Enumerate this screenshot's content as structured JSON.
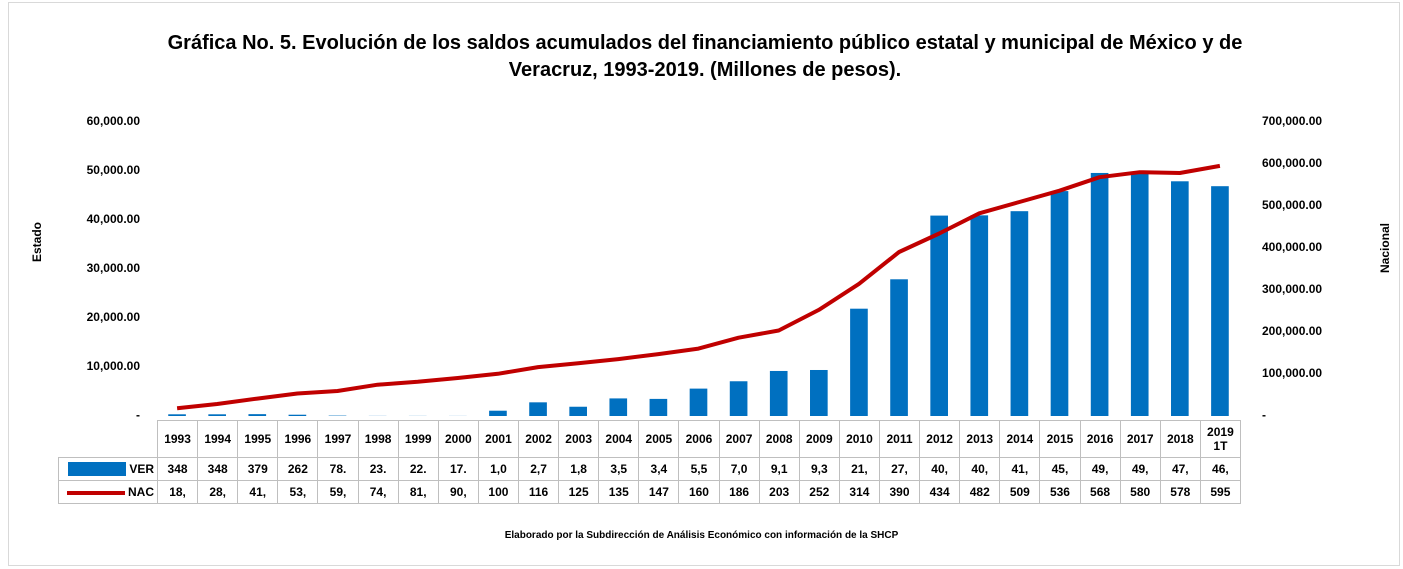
{
  "chart_data": {
    "type": "bar-line",
    "title": "Gráfica No. 5. Evolución de los saldos acumulados del financiamiento público estatal y municipal de México y de Veracruz,  1993-2019. (Millones de pesos).",
    "y_label": "Estado",
    "y2_label": "Nacional",
    "note": "Elaborado por la Subdirección de Análisis Económico con información de la SHCP",
    "categories": [
      "1993",
      "1994",
      "1995",
      "1996",
      "1997",
      "1998",
      "1999",
      "2000",
      "2001",
      "2002",
      "2003",
      "2004",
      "2005",
      "2006",
      "2007",
      "2008",
      "2009",
      "2010",
      "2011",
      "2012",
      "2013",
      "2014",
      "2015",
      "2016",
      "2017",
      "2018",
      "2019 1T"
    ],
    "series": [
      {
        "name": "VER",
        "type": "bar",
        "color": "#0070c0",
        "values": [
          348,
          348,
          379,
          262,
          78.5,
          23.5,
          22.5,
          17.5,
          1080,
          2790,
          1890,
          3590,
          3490,
          5590,
          7090,
          9190,
          9390,
          21900,
          27900,
          40900,
          40950,
          41800,
          45900,
          49600,
          49700,
          47900,
          46900
        ],
        "value_labels": [
          "348",
          "348",
          "379",
          "262",
          "78.",
          "23.",
          "22.",
          "17.",
          "1,0",
          "2,7",
          "1,8",
          "3,5",
          "3,4",
          "5,5",
          "7,0",
          "9,1",
          "9,3",
          "21,",
          "27,",
          "40,",
          "40,",
          "41,",
          "45,",
          "49,",
          "49,",
          "47,",
          "46,"
        ]
      },
      {
        "name": "NAC",
        "type": "line",
        "axis": "y2",
        "color": "#c00000",
        "values": [
          18500,
          28500,
          41500,
          53500,
          59500,
          74500,
          81500,
          90500,
          100500,
          116500,
          125500,
          135500,
          147500,
          160500,
          186500,
          203500,
          252500,
          314500,
          390500,
          434500,
          482500,
          509500,
          536500,
          568500,
          580500,
          578500,
          595500
        ],
        "value_labels": [
          "18,",
          "28,",
          "41,",
          "53,",
          "59,",
          "74,",
          "81,",
          "90,",
          "100",
          "116",
          "125",
          "135",
          "147",
          "160",
          "186",
          "203",
          "252",
          "314",
          "390",
          "434",
          "482",
          "509",
          "536",
          "568",
          "580",
          "578",
          "595"
        ]
      }
    ],
    "ylim": [
      0,
      60000
    ],
    "yticks": [
      {
        "value": 0,
        "label": "-"
      },
      {
        "value": 10000,
        "label": "10,000.00"
      },
      {
        "value": 20000,
        "label": "20,000.00"
      },
      {
        "value": 30000,
        "label": "30,000.00"
      },
      {
        "value": 40000,
        "label": "40,000.00"
      },
      {
        "value": 50000,
        "label": "50,000.00"
      },
      {
        "value": 60000,
        "label": "60,000.00"
      }
    ],
    "y2lim": [
      0,
      700000
    ],
    "y2ticks": [
      {
        "value": 0,
        "label": "-"
      },
      {
        "value": 100000,
        "label": "100,000.00"
      },
      {
        "value": 200000,
        "label": "200,000.00"
      },
      {
        "value": 300000,
        "label": "300,000.00"
      },
      {
        "value": 400000,
        "label": "400,000.00"
      },
      {
        "value": 500000,
        "label": "500,000.00"
      },
      {
        "value": 600000,
        "label": "600,000.00"
      },
      {
        "value": 700000,
        "label": "700,000.00"
      }
    ]
  }
}
